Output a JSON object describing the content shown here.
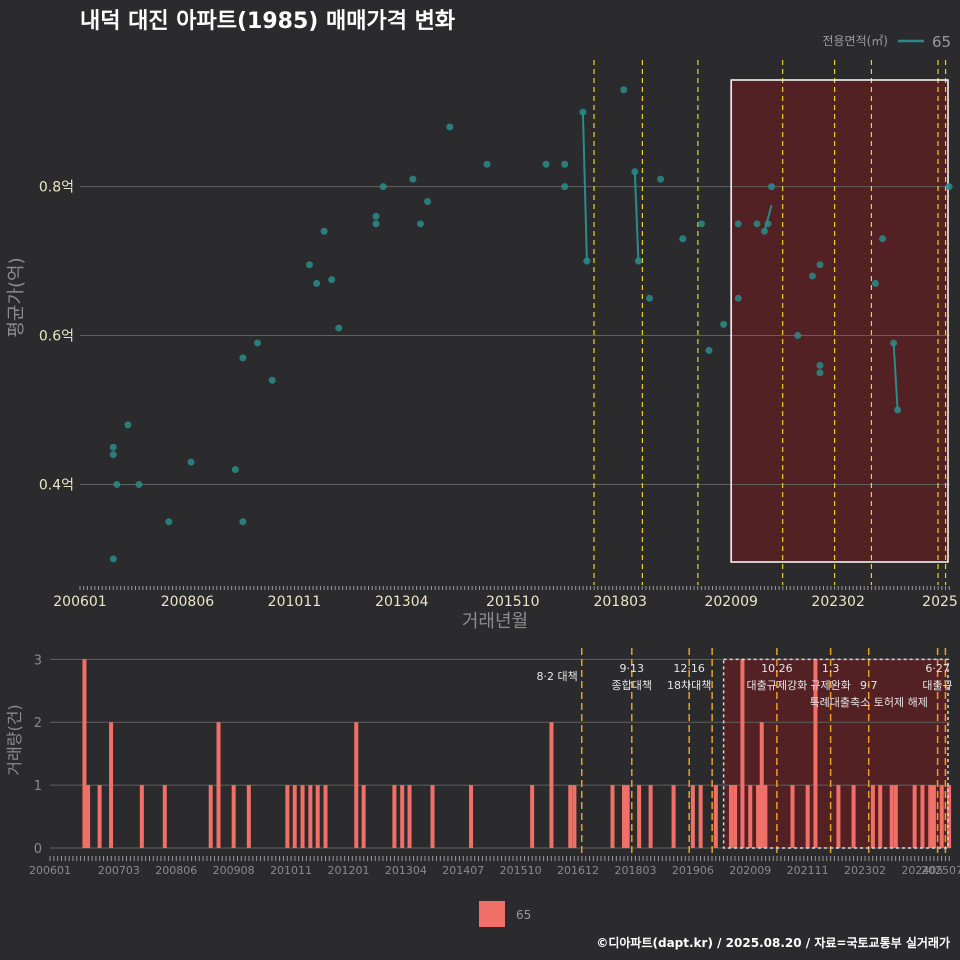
{
  "title": "내덕 대진 아파트(1985) 매매가격 변화",
  "legend": {
    "title": "전용면적(㎡)",
    "series": "65"
  },
  "bottom_legend": {
    "series": "65"
  },
  "footer": "©디아파트(dapt.kr) / 2025.08.20 / 자료=국토교통부 실거래가",
  "colors": {
    "price": "#2a8c8a",
    "volume": "#f07068",
    "highlight": "#5a1f22",
    "policy": "#e8d42a",
    "policy_bottom": "#e8a020"
  },
  "chart_data": [
    {
      "type": "scatter",
      "xlabel": "거래년월",
      "ylabel": "평균가(억)",
      "x_range": [
        2006.0,
        2025.6
      ],
      "ylim": [
        0.265,
        0.97
      ],
      "y_ticks": [
        {
          "v": 0.4,
          "label": "0.4억"
        },
        {
          "v": 0.6,
          "label": "0.6억"
        },
        {
          "v": 0.8,
          "label": "0.8억"
        }
      ],
      "x_ticks": [
        {
          "v": 2006.0,
          "label": "200601"
        },
        {
          "v": 2008.42,
          "label": "200806"
        },
        {
          "v": 2010.83,
          "label": "201011"
        },
        {
          "v": 2013.25,
          "label": "201304"
        },
        {
          "v": 2015.75,
          "label": "201510"
        },
        {
          "v": 2018.17,
          "label": "201803"
        },
        {
          "v": 2020.67,
          "label": "202009"
        },
        {
          "v": 2023.08,
          "label": "202302"
        },
        {
          "v": 2025.5,
          "label": "2025"
        }
      ],
      "points": [
        [
          2006.75,
          0.3
        ],
        [
          2006.75,
          0.44
        ],
        [
          2006.75,
          0.45
        ],
        [
          2006.83,
          0.4
        ],
        [
          2007.08,
          0.48
        ],
        [
          2007.33,
          0.4
        ],
        [
          2008.0,
          0.35
        ],
        [
          2008.5,
          0.43
        ],
        [
          2009.5,
          0.42
        ],
        [
          2009.67,
          0.35
        ],
        [
          2009.67,
          0.57
        ],
        [
          2010.0,
          0.59
        ],
        [
          2010.33,
          0.54
        ],
        [
          2011.17,
          0.695
        ],
        [
          2011.33,
          0.67
        ],
        [
          2011.5,
          0.74
        ],
        [
          2011.67,
          0.675
        ],
        [
          2011.83,
          0.61
        ],
        [
          2012.67,
          0.75
        ],
        [
          2012.67,
          0.76
        ],
        [
          2012.83,
          0.8
        ],
        [
          2013.5,
          0.81
        ],
        [
          2013.67,
          0.75
        ],
        [
          2013.83,
          0.78
        ],
        [
          2014.33,
          0.88
        ],
        [
          2015.17,
          0.83
        ],
        [
          2016.5,
          0.83
        ],
        [
          2016.92,
          0.8
        ],
        [
          2016.92,
          0.83
        ],
        [
          2017.33,
          0.9
        ],
        [
          2017.42,
          0.7
        ],
        [
          2018.25,
          0.93
        ],
        [
          2018.5,
          0.82
        ],
        [
          2018.58,
          0.7
        ],
        [
          2018.83,
          0.65
        ],
        [
          2019.08,
          0.81
        ],
        [
          2019.58,
          0.73
        ],
        [
          2020.0,
          0.75
        ],
        [
          2020.17,
          0.58
        ],
        [
          2020.5,
          0.615
        ],
        [
          2020.83,
          0.65
        ],
        [
          2020.83,
          0.75
        ],
        [
          2021.25,
          0.75
        ],
        [
          2021.42,
          0.74
        ],
        [
          2021.5,
          0.75
        ],
        [
          2021.58,
          0.8
        ],
        [
          2022.17,
          0.6
        ],
        [
          2022.5,
          0.68
        ],
        [
          2022.67,
          0.55
        ],
        [
          2022.67,
          0.56
        ],
        [
          2022.67,
          0.695
        ],
        [
          2023.92,
          0.67
        ],
        [
          2024.08,
          0.73
        ],
        [
          2024.33,
          0.59
        ],
        [
          2024.42,
          0.5
        ],
        [
          2025.58,
          0.8
        ]
      ],
      "lines": [
        [
          [
            2017.33,
            0.9
          ],
          [
            2017.42,
            0.7
          ]
        ],
        [
          [
            2018.5,
            0.82
          ],
          [
            2018.58,
            0.7
          ]
        ],
        [
          [
            2021.42,
            0.74
          ],
          [
            2021.58,
            0.775
          ]
        ],
        [
          [
            2024.33,
            0.59
          ],
          [
            2024.42,
            0.5
          ]
        ]
      ],
      "policy_lines": [
        2017.58,
        2018.67,
        2019.92,
        2021.83,
        2023.0,
        2023.83,
        2025.33,
        2025.5
      ],
      "highlight": [
        2020.67,
        2025.58
      ]
    },
    {
      "type": "bar",
      "ylabel": "거래량(건)",
      "x_range": [
        2006.0,
        2025.6
      ],
      "ylim": [
        0,
        3.18
      ],
      "y_ticks": [
        {
          "v": 0,
          "label": "0"
        },
        {
          "v": 1,
          "label": "1"
        },
        {
          "v": 2,
          "label": "2"
        },
        {
          "v": 3,
          "label": "3"
        }
      ],
      "x_ticks": [
        {
          "v": 2006.0,
          "label": "200601"
        },
        {
          "v": 2007.5,
          "label": "200703"
        },
        {
          "v": 2008.75,
          "label": "200806"
        },
        {
          "v": 2010.0,
          "label": "200908"
        },
        {
          "v": 2011.25,
          "label": "201011"
        },
        {
          "v": 2012.5,
          "label": "201201"
        },
        {
          "v": 2013.75,
          "label": "201304"
        },
        {
          "v": 2015.0,
          "label": "201407"
        },
        {
          "v": 2016.25,
          "label": "201510"
        },
        {
          "v": 2017.5,
          "label": "201612"
        },
        {
          "v": 2018.75,
          "label": "201803"
        },
        {
          "v": 2020.0,
          "label": "201906"
        },
        {
          "v": 2021.25,
          "label": "202009"
        },
        {
          "v": 2022.5,
          "label": "202111"
        },
        {
          "v": 2023.75,
          "label": "202302"
        },
        {
          "v": 2025.0,
          "label": "202405"
        },
        {
          "v": 2025.6,
          "label": "202507"
        }
      ],
      "bars": [
        [
          2006.75,
          3
        ],
        [
          2006.83,
          1
        ],
        [
          2007.08,
          1
        ],
        [
          2007.33,
          2
        ],
        [
          2008.0,
          1
        ],
        [
          2008.5,
          1
        ],
        [
          2009.5,
          1
        ],
        [
          2009.67,
          2
        ],
        [
          2010.0,
          1
        ],
        [
          2010.33,
          1
        ],
        [
          2011.17,
          1
        ],
        [
          2011.33,
          1
        ],
        [
          2011.5,
          1
        ],
        [
          2011.67,
          1
        ],
        [
          2011.83,
          1
        ],
        [
          2012.0,
          1
        ],
        [
          2012.67,
          2
        ],
        [
          2012.83,
          1
        ],
        [
          2013.5,
          1
        ],
        [
          2013.67,
          1
        ],
        [
          2013.83,
          1
        ],
        [
          2014.33,
          1
        ],
        [
          2015.17,
          1
        ],
        [
          2016.5,
          1
        ],
        [
          2016.92,
          2
        ],
        [
          2017.33,
          1
        ],
        [
          2017.42,
          1
        ],
        [
          2018.25,
          1
        ],
        [
          2018.5,
          1
        ],
        [
          2018.58,
          1
        ],
        [
          2018.83,
          1
        ],
        [
          2019.08,
          1
        ],
        [
          2019.58,
          1
        ],
        [
          2020.0,
          1
        ],
        [
          2020.17,
          1
        ],
        [
          2020.5,
          1
        ],
        [
          2020.83,
          1
        ],
        [
          2020.92,
          1
        ],
        [
          2021.08,
          3
        ],
        [
          2021.25,
          1
        ],
        [
          2021.42,
          1
        ],
        [
          2021.5,
          2
        ],
        [
          2021.58,
          1
        ],
        [
          2022.17,
          1
        ],
        [
          2022.5,
          1
        ],
        [
          2022.67,
          3
        ],
        [
          2023.17,
          1
        ],
        [
          2023.5,
          1
        ],
        [
          2023.92,
          1
        ],
        [
          2024.08,
          1
        ],
        [
          2024.33,
          1
        ],
        [
          2024.42,
          1
        ],
        [
          2024.83,
          1
        ],
        [
          2025.0,
          1
        ],
        [
          2025.17,
          1
        ],
        [
          2025.25,
          1
        ],
        [
          2025.42,
          1
        ],
        [
          2025.58,
          1
        ]
      ],
      "policy_lines": [
        2017.58,
        2018.67,
        2019.92,
        2020.42,
        2021.83,
        2023.0,
        2023.83,
        2025.33,
        2025.5
      ],
      "highlight": [
        2020.67,
        2025.58
      ],
      "annotations": [
        {
          "x": 2017.58,
          "lines": [
            "8·2 대책"
          ],
          "align": "end",
          "y0": 680
        },
        {
          "x": 2018.67,
          "lines": [
            "9·13",
            "종합대책"
          ],
          "align": "middle",
          "y0": 672
        },
        {
          "x": 2019.92,
          "lines": [
            "12·16",
            "18차대책"
          ],
          "align": "middle",
          "y0": 672
        },
        {
          "x": 2021.83,
          "lines": [
            "10.26",
            "대출규제강화"
          ],
          "align": "middle",
          "y0": 672
        },
        {
          "x": 2023.0,
          "lines": [
            "1.3",
            "규제완화"
          ],
          "align": "middle",
          "y0": 672
        },
        {
          "x": 2023.83,
          "lines": [
            "9·7",
            "특례대출축소 토허제 해제"
          ],
          "align": "middle",
          "y0": 689
        },
        {
          "x": 2025.33,
          "lines": [
            "6·27",
            "대출규"
          ],
          "align": "middle",
          "y0": 672
        }
      ]
    }
  ]
}
